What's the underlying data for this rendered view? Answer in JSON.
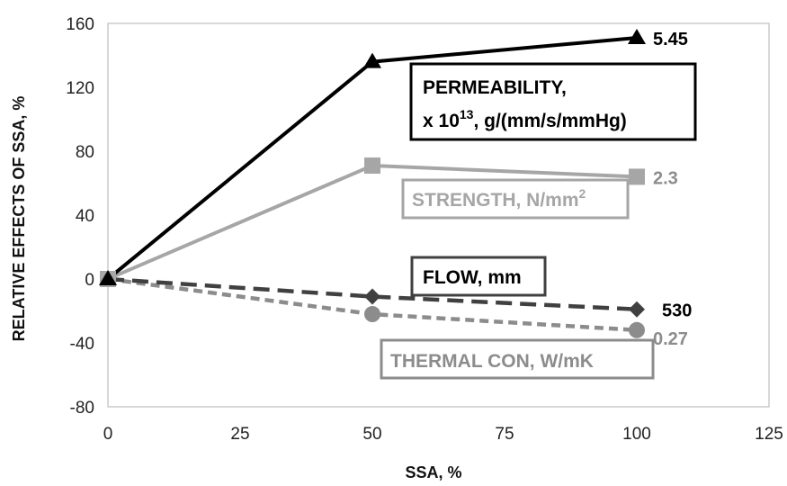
{
  "chart_data": {
    "type": "line",
    "title": "",
    "xlabel": "SSA, %",
    "ylabel": "RELATIVE EFFECTS OF SSA, %",
    "xlim": [
      0,
      125
    ],
    "ylim": [
      -80,
      160
    ],
    "xticks": [
      "0",
      "25",
      "50",
      "75",
      "100",
      "125"
    ],
    "yticks": [
      "-80",
      "-40",
      "0",
      "40",
      "80",
      "120",
      "160"
    ],
    "grid": false,
    "x": [
      0,
      50,
      100
    ],
    "series": [
      {
        "key": "permeability",
        "name": "PERMEABILITY,",
        "name_line2": "x 10",
        "name_sup": "13",
        "name_line2_rest": ", g/(mm/s/mmHg)",
        "values": [
          0,
          136,
          151
        ],
        "end_label": "5.45",
        "color": "#000000",
        "marker": "triangle",
        "dash": "solid"
      },
      {
        "key": "strength",
        "name": "STRENGTH, N/mm",
        "name_sup": "2",
        "values": [
          0,
          71,
          64
        ],
        "end_label": "2.3",
        "color": "#a6a6a6",
        "marker": "square",
        "dash": "solid"
      },
      {
        "key": "flow",
        "name": "FLOW, mm",
        "values": [
          0,
          -11,
          -19
        ],
        "end_label": "530",
        "color": "#404040",
        "marker": "diamond",
        "dash": "dashed"
      },
      {
        "key": "thermal",
        "name": "THERMAL CON, W/mK",
        "values": [
          0,
          -22,
          -32
        ],
        "end_label": "0.27",
        "color": "#8c8c8c",
        "marker": "circle",
        "dash": "dashed"
      }
    ]
  }
}
